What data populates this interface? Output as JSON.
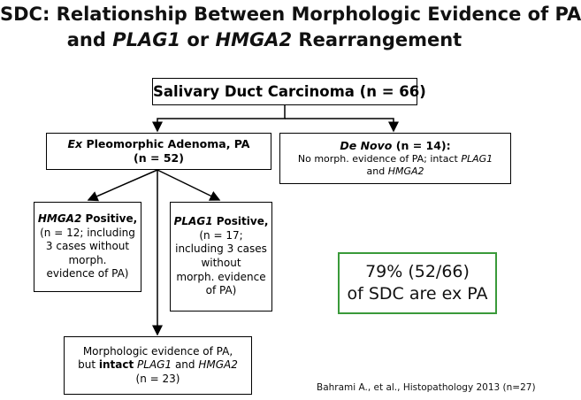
{
  "header": {
    "title": [
      [
        "SDC: Relationship Between Morphologic Evidence of PA"
      ],
      [
        "and ",
        "PLAG1",
        " or ",
        "HMGA2",
        " Rearrangement"
      ]
    ]
  },
  "nodes": [
    {
      "lines": [
        [
          "Salivary Duct Carcinoma (n = 66)"
        ]
      ]
    },
    {
      "lines": [
        [
          "Ex",
          " Pleomorphic Adenoma, PA"
        ],
        [
          "(n = 52)"
        ]
      ]
    },
    {
      "lines": [
        [
          "De Novo",
          " (n = 14):"
        ],
        [
          "No morph. evidence of PA; intact ",
          "PLAG1"
        ],
        [
          "and ",
          "HMGA2"
        ]
      ]
    },
    {
      "lines": [
        [
          "HMGA2",
          " Positive,"
        ],
        [
          "(n = 12; including"
        ],
        [
          "3 cases without"
        ],
        [
          "morph."
        ],
        [
          "evidence of PA)"
        ]
      ]
    },
    {
      "lines": [
        [
          "PLAG1",
          " Positive,"
        ],
        [
          "(n = 17;"
        ],
        [
          "including 3 cases"
        ],
        [
          "without"
        ],
        [
          "morph. evidence"
        ],
        [
          "of PA)"
        ]
      ]
    },
    {
      "lines": [
        [
          "Morphologic evidence of PA,"
        ],
        [
          "but ",
          "intact",
          " ",
          "PLAG1",
          " and ",
          "HMGA2"
        ],
        [
          "(n = 23)"
        ]
      ]
    }
  ],
  "callout": {
    "lines": [
      "79% (52/66)",
      "of SDC are ex PA"
    ]
  },
  "citation": "Bahrami A., et al., Histopathology 2013 (n=27)"
}
